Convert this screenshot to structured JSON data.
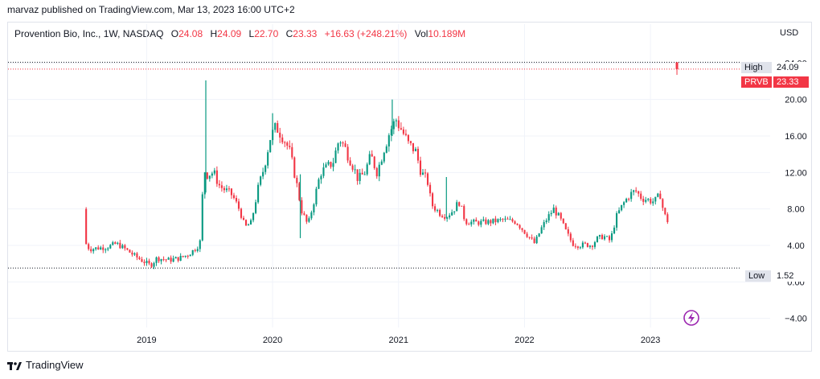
{
  "header": {
    "published_by": "marvaz published on TradingView.com, Mar 13, 2023 16:00 UTC+2"
  },
  "legend": {
    "symbol": "Provention Bio, Inc., 1W, NASDAQ",
    "open_label": "O",
    "open": "24.08",
    "high_label": "H",
    "high": "24.09",
    "low_label": "L",
    "low": "22.70",
    "close_label": "C",
    "close": "23.33",
    "change": "+16.63 (+248.21%)",
    "vol_label": "Vol",
    "vol": "10.189M"
  },
  "currency": "USD",
  "markers": {
    "high_label": "High",
    "high_value": "24.09",
    "ticker": "PRVB",
    "last_value": "23.33",
    "low_label": "Low",
    "low_value": "1.52"
  },
  "footer": {
    "brand": "TradingView"
  },
  "colors": {
    "up": "#089981",
    "down": "#f23645",
    "grid": "#f0f3fa",
    "badge": "#9c27b0"
  },
  "chart_data": {
    "type": "candlestick",
    "y_ticks": [
      "24.00",
      "20.00",
      "16.00",
      "12.00",
      "8.00",
      "4.00",
      "0.00",
      "−4.00"
    ],
    "y_tick_values": [
      24,
      20,
      16,
      12,
      8,
      4,
      0,
      -4
    ],
    "ylim": [
      -5,
      26.5
    ],
    "x_ticks": [
      "2019",
      "2020",
      "2021",
      "2022",
      "2023"
    ],
    "x_tick_values": [
      2019,
      2020,
      2021,
      2022,
      2023
    ],
    "xlim": [
      2017.9,
      2023.95
    ],
    "high": 24.09,
    "last": 23.33,
    "low": 1.52,
    "price_path": [
      [
        2018.52,
        8.0
      ],
      [
        2018.54,
        4.0
      ],
      [
        2018.57,
        3.6
      ],
      [
        2018.62,
        3.7
      ],
      [
        2018.7,
        3.8
      ],
      [
        2018.78,
        4.2
      ],
      [
        2018.85,
        3.6
      ],
      [
        2018.93,
        2.8
      ],
      [
        2019.0,
        2.2
      ],
      [
        2019.05,
        1.8
      ],
      [
        2019.1,
        2.6
      ],
      [
        2019.2,
        2.4
      ],
      [
        2019.28,
        2.6
      ],
      [
        2019.35,
        3.0
      ],
      [
        2019.42,
        3.8
      ],
      [
        2019.45,
        4.6
      ],
      [
        2019.47,
        12.4
      ],
      [
        2019.5,
        11.8
      ],
      [
        2019.55,
        12.0
      ],
      [
        2019.6,
        10.5
      ],
      [
        2019.65,
        10.0
      ],
      [
        2019.7,
        9.5
      ],
      [
        2019.76,
        7.8
      ],
      [
        2019.8,
        6.0
      ],
      [
        2019.85,
        6.5
      ],
      [
        2019.9,
        10.0
      ],
      [
        2019.95,
        12.5
      ],
      [
        2020.0,
        15.8
      ],
      [
        2020.05,
        17.0
      ],
      [
        2020.1,
        16.0
      ],
      [
        2020.15,
        14.5
      ],
      [
        2020.2,
        11.5
      ],
      [
        2020.25,
        7.8
      ],
      [
        2020.3,
        6.2
      ],
      [
        2020.35,
        9.0
      ],
      [
        2020.4,
        12.0
      ],
      [
        2020.45,
        12.5
      ],
      [
        2020.5,
        13.2
      ],
      [
        2020.55,
        15.8
      ],
      [
        2020.6,
        14.5
      ],
      [
        2020.65,
        13.0
      ],
      [
        2020.7,
        11.2
      ],
      [
        2020.75,
        12.0
      ],
      [
        2020.8,
        13.8
      ],
      [
        2020.85,
        12.0
      ],
      [
        2020.9,
        14.5
      ],
      [
        2020.95,
        16.5
      ],
      [
        2021.0,
        17.8
      ],
      [
        2021.05,
        16.5
      ],
      [
        2021.1,
        15.0
      ],
      [
        2021.15,
        14.5
      ],
      [
        2021.2,
        12.0
      ],
      [
        2021.25,
        11.0
      ],
      [
        2021.28,
        8.5
      ],
      [
        2021.35,
        7.5
      ],
      [
        2021.4,
        7.2
      ],
      [
        2021.45,
        7.8
      ],
      [
        2021.5,
        8.8
      ],
      [
        2021.55,
        6.6
      ],
      [
        2021.65,
        6.5
      ],
      [
        2021.75,
        6.6
      ],
      [
        2021.85,
        6.8
      ],
      [
        2021.95,
        6.6
      ],
      [
        2022.0,
        5.8
      ],
      [
        2022.05,
        5.0
      ],
      [
        2022.1,
        4.2
      ],
      [
        2022.15,
        5.8
      ],
      [
        2022.2,
        7.0
      ],
      [
        2022.25,
        8.0
      ],
      [
        2022.3,
        7.0
      ],
      [
        2022.35,
        5.5
      ],
      [
        2022.4,
        4.2
      ],
      [
        2022.45,
        4.0
      ],
      [
        2022.5,
        4.1
      ],
      [
        2022.55,
        4.0
      ],
      [
        2022.6,
        4.8
      ],
      [
        2022.65,
        5.0
      ],
      [
        2022.7,
        4.5
      ],
      [
        2022.75,
        7.2
      ],
      [
        2022.8,
        8.5
      ],
      [
        2022.85,
        9.5
      ],
      [
        2022.9,
        10.0
      ],
      [
        2022.95,
        9.2
      ],
      [
        2023.0,
        9.0
      ],
      [
        2023.05,
        8.8
      ],
      [
        2023.1,
        9.6
      ],
      [
        2023.12,
        7.8
      ],
      [
        2023.15,
        6.7
      ]
    ],
    "spikes": [
      {
        "x": 2019.47,
        "high": 22.1,
        "low": 9.8
      },
      {
        "x": 2020.0,
        "high": 18.5,
        "low": 15.0
      },
      {
        "x": 2020.22,
        "high": 11.8,
        "low": 4.8
      },
      {
        "x": 2020.95,
        "high": 20.0,
        "low": 16.0
      },
      {
        "x": 2021.38,
        "high": 11.5,
        "low": 7.0
      }
    ],
    "last_candle": {
      "x": 2023.21,
      "open": 24.08,
      "high": 24.09,
      "low": 22.7,
      "close": 23.33
    }
  }
}
